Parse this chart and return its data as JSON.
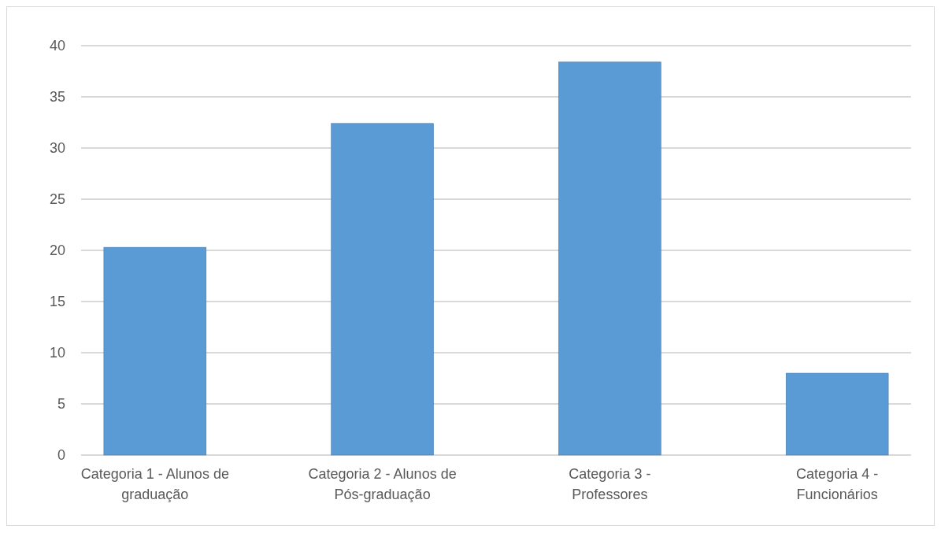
{
  "chart_data": {
    "type": "bar",
    "categories": [
      "Categoria 1 - Alunos de graduação",
      "Categoria 2 - Alunos de Pós-graduação",
      "Categoria 3 - Professores",
      "Categoria 4 - Funcionários"
    ],
    "values": [
      20.3,
      32.4,
      38.4,
      8
    ],
    "color": "#5b9bd5",
    "ylim": [
      0,
      40
    ],
    "yticks": [
      0,
      5,
      10,
      15,
      20,
      25,
      30,
      35,
      40
    ],
    "grid": "y"
  }
}
